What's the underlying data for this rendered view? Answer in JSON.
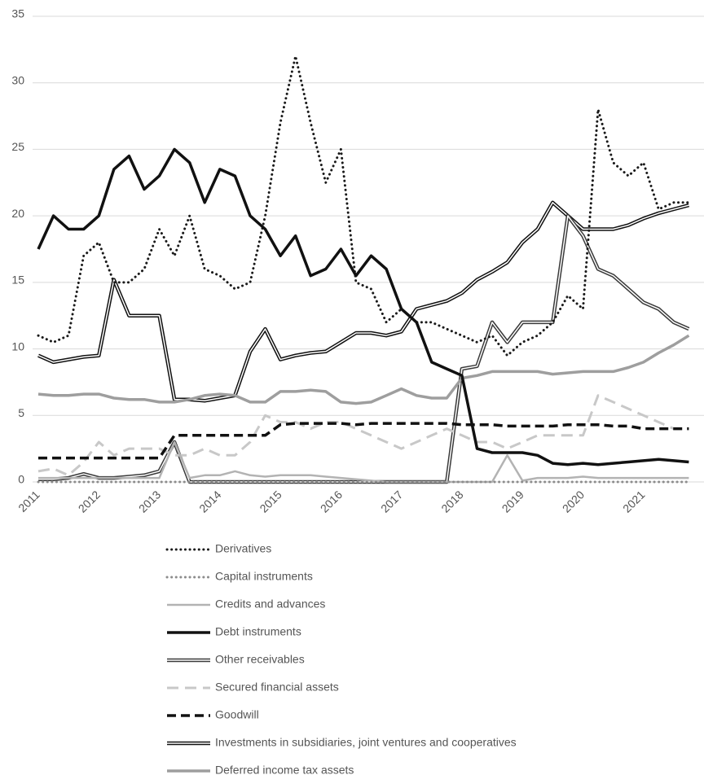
{
  "chart_data": {
    "type": "line",
    "categories": [
      "2011",
      null,
      null,
      null,
      "2012",
      null,
      null,
      null,
      "2013",
      null,
      null,
      null,
      "2014",
      null,
      null,
      null,
      "2015",
      null,
      null,
      null,
      "2016",
      null,
      null,
      null,
      "2017",
      null,
      null,
      null,
      "2018",
      null,
      null,
      null,
      "2019",
      null,
      null,
      null,
      "2020",
      null,
      null,
      null,
      "2021",
      null,
      null,
      null
    ],
    "ylim": [
      0,
      35
    ],
    "yticks": [
      0,
      5,
      10,
      15,
      20,
      25,
      30,
      35
    ],
    "grid": true,
    "series": [
      {
        "name": "Derivatives",
        "color": "#1a1a1a",
        "style": "dotted",
        "values": [
          11,
          10.5,
          11,
          17,
          18,
          15,
          15,
          16,
          19,
          17,
          20,
          16,
          15.5,
          14.5,
          15,
          20,
          27,
          32,
          27,
          22.5,
          25,
          15,
          14.5,
          12,
          13,
          12,
          12,
          11.5,
          11,
          10.5,
          11,
          9.5,
          10.5,
          11,
          12,
          14,
          13,
          28,
          24,
          23,
          24,
          20.5,
          21,
          21
        ]
      },
      {
        "name": "Capital instruments",
        "color": "#8c8c8c",
        "style": "dotted",
        "values": [
          0,
          0,
          0,
          0,
          0,
          0,
          0,
          0,
          0,
          0,
          0,
          0,
          0,
          0,
          0,
          0,
          0,
          0,
          0,
          0,
          0,
          0,
          0,
          0,
          0,
          0,
          0,
          0,
          0,
          0,
          0,
          0,
          0,
          0,
          0,
          0,
          0,
          0,
          0,
          0,
          0,
          0,
          0,
          0
        ]
      },
      {
        "name": "Credits and advances",
        "color": "#b3b3b3",
        "style": "solid",
        "values": [
          0.3,
          0.3,
          0.3,
          0.3,
          0.3,
          0.3,
          0.3,
          0.3,
          0.3,
          3,
          0.3,
          0.5,
          0.5,
          0.8,
          0.5,
          0.4,
          0.5,
          0.5,
          0.5,
          0.4,
          0.3,
          0.2,
          0.1,
          0,
          0,
          0,
          0,
          0,
          0,
          0,
          0,
          2,
          0.1,
          0.3,
          0.3,
          0.3,
          0.4,
          0.3,
          0.3,
          0.3,
          0.3,
          0.3,
          0.3,
          0.3
        ]
      },
      {
        "name": "Debt instruments",
        "color": "#111111",
        "style": "thick",
        "values": [
          17.5,
          20,
          19,
          19,
          20,
          23.5,
          24.5,
          22,
          23,
          25,
          24,
          21,
          23.5,
          23,
          20,
          19,
          17,
          18.5,
          15.5,
          16,
          17.5,
          15.5,
          17,
          16,
          13,
          12,
          9,
          8.5,
          8,
          2.5,
          2.2,
          2.2,
          2.2,
          2,
          1.4,
          1.3,
          1.4,
          1.3,
          1.4,
          1.5,
          1.6,
          1.7,
          1.6,
          1.5
        ]
      },
      {
        "name": "Other receivables",
        "color": "#3a3a3a",
        "style": "double",
        "values": [
          0.2,
          0.2,
          0.3,
          0.6,
          0.3,
          0.3,
          0.4,
          0.5,
          0.8,
          3,
          0,
          0,
          0,
          0,
          0,
          0,
          0,
          0,
          0,
          0,
          0,
          0,
          0,
          0,
          0,
          0,
          0,
          0,
          8.5,
          8.7,
          12,
          10.5,
          12,
          12,
          12,
          20,
          18.5,
          16,
          15.5,
          14.5,
          13.5,
          13,
          12,
          11.5
        ]
      },
      {
        "name": "Secured financial assets",
        "color": "#c8c8c8",
        "style": "dashed",
        "values": [
          0.8,
          1,
          0.5,
          1.5,
          3,
          2,
          2.5,
          2.5,
          2.5,
          2,
          2,
          2.5,
          2,
          2,
          3,
          5,
          4.5,
          4.5,
          4,
          4.5,
          4.5,
          4,
          3.5,
          3,
          2.5,
          3,
          3.5,
          4,
          3.5,
          3,
          3,
          2.5,
          3,
          3.5,
          3.5,
          3.5,
          3.5,
          6.5,
          6,
          5.5,
          5,
          4.5,
          4,
          4
        ]
      },
      {
        "name": "Goodwill",
        "color": "#111111",
        "style": "bigdash",
        "values": [
          1.8,
          1.8,
          1.8,
          1.8,
          1.8,
          1.8,
          1.8,
          1.8,
          1.8,
          3.5,
          3.5,
          3.5,
          3.5,
          3.5,
          3.5,
          3.5,
          4.3,
          4.4,
          4.4,
          4.4,
          4.4,
          4.3,
          4.4,
          4.4,
          4.4,
          4.4,
          4.4,
          4.4,
          4.3,
          4.3,
          4.3,
          4.2,
          4.2,
          4.2,
          4.2,
          4.3,
          4.3,
          4.3,
          4.2,
          4.2,
          4,
          4,
          4,
          4
        ]
      },
      {
        "name": "Investments in subsidiaries, joint ventures and cooperatives",
        "color": "#111111",
        "style": "double",
        "values": [
          9.5,
          9,
          9.2,
          9.4,
          9.5,
          15.2,
          12.5,
          12.5,
          12.5,
          6.2,
          6.2,
          6.1,
          6.3,
          6.5,
          9.8,
          11.5,
          9.2,
          9.5,
          9.7,
          9.8,
          10.5,
          11.2,
          11.2,
          11,
          11.3,
          13,
          13.3,
          13.6,
          14.2,
          15.2,
          15.8,
          16.5,
          18,
          19,
          21,
          20,
          19,
          19,
          19,
          19.3,
          19.8,
          20.2,
          20.5,
          20.8
        ]
      },
      {
        "name": "Deferred income tax assets",
        "color": "#9e9e9e",
        "style": "thick",
        "values": [
          6.6,
          6.5,
          6.5,
          6.6,
          6.6,
          6.3,
          6.2,
          6.2,
          6,
          6,
          6.2,
          6.5,
          6.6,
          6.5,
          6,
          6,
          6.8,
          6.8,
          6.9,
          6.8,
          6,
          5.9,
          6,
          6.5,
          7,
          6.5,
          6.3,
          6.3,
          7.8,
          8,
          8.3,
          8.3,
          8.3,
          8.3,
          8.1,
          8.2,
          8.3,
          8.3,
          8.3,
          8.6,
          9,
          9.7,
          10.3,
          11
        ]
      }
    ]
  }
}
